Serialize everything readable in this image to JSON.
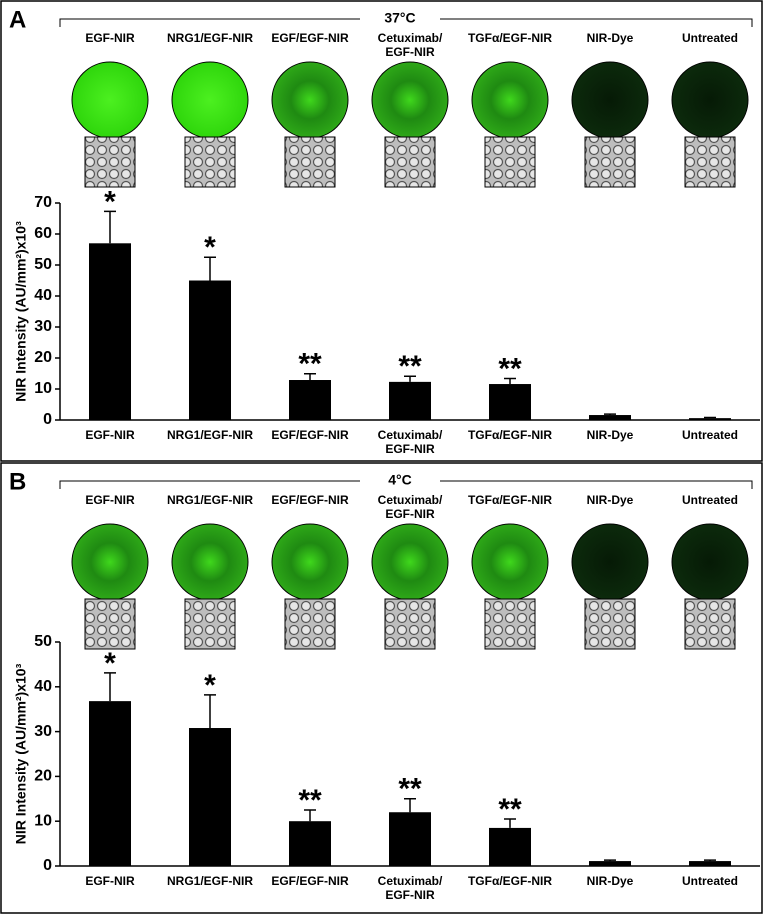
{
  "chart_data": [
    {
      "type": "bar",
      "panel": "A",
      "title": "37°C",
      "categories": [
        "EGF-NIR",
        "NRG1/EGF-NIR",
        "EGF/EGF-NIR",
        "Cetuximab/\nEGF-NIR",
        "TGFα/EGF-NIR",
        "NIR-Dye",
        "Untreated"
      ],
      "values": [
        57,
        45,
        12.9,
        12.3,
        11.6,
        1.6,
        0.6
      ],
      "errors": [
        10.3,
        7.5,
        2,
        1.8,
        1.8,
        0.3,
        0.2
      ],
      "annotations": [
        "*",
        "*",
        "**",
        "**",
        "**",
        null,
        null
      ],
      "color": "#000000",
      "ylabel": "NIR Intensity (AU/mm²)x10³",
      "ylim": [
        0,
        70
      ],
      "yticks": [
        0,
        10,
        20,
        30,
        40,
        50,
        60,
        70
      ]
    },
    {
      "type": "bar",
      "panel": "B",
      "title": "4°C",
      "categories": [
        "EGF-NIR",
        "NRG1/EGF-NIR",
        "EGF/EGF-NIR",
        "Cetuximab/\nEGF-NIR",
        "TGFα/EGF-NIR",
        "NIR-Dye",
        "Untreated"
      ],
      "values": [
        36.8,
        30.8,
        10,
        12,
        8.5,
        1.1,
        1.1
      ],
      "errors": [
        6.3,
        7.4,
        2.5,
        3,
        2,
        0.2,
        0.2
      ],
      "annotations": [
        "*",
        "*",
        "**",
        "**",
        "**",
        null,
        null
      ],
      "color": "#000000",
      "ylabel": "NIR Intensity (AU/mm²)x10³",
      "ylim": [
        0,
        50
      ],
      "yticks": [
        0,
        10,
        20,
        30,
        40,
        50
      ]
    }
  ]
}
